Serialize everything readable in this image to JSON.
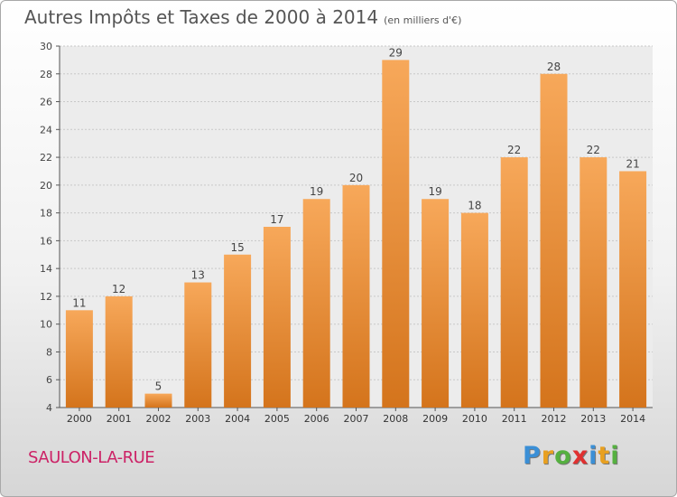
{
  "header": {
    "title": "Autres Impôts et Taxes de 2000 à 2014",
    "subtitle": "(en milliers d'€)"
  },
  "commune": "SAULON-LA-RUE",
  "logo": {
    "text": "Proxiti",
    "letters": [
      {
        "ch": "P",
        "color": "#3a8fd6"
      },
      {
        "ch": "r",
        "color": "#e8a020"
      },
      {
        "ch": "o",
        "color": "#55b040"
      },
      {
        "ch": "x",
        "color": "#e03030"
      },
      {
        "ch": "i",
        "color": "#3a8fd6"
      },
      {
        "ch": "t",
        "color": "#e8a020"
      },
      {
        "ch": "i",
        "color": "#55b040"
      }
    ]
  },
  "chart_data": {
    "type": "bar",
    "categories": [
      "2000",
      "2001",
      "2002",
      "2003",
      "2004",
      "2005",
      "2006",
      "2007",
      "2008",
      "2009",
      "2010",
      "2011",
      "2012",
      "2013",
      "2014"
    ],
    "values": [
      11,
      12,
      5,
      13,
      15,
      17,
      19,
      20,
      29,
      19,
      18,
      22,
      28,
      22,
      21
    ],
    "title": "Autres Impôts et Taxes de 2000 à 2014",
    "subtitle": "(en milliers d'€)",
    "ylim": [
      4,
      30
    ],
    "yticks": [
      4,
      6,
      8,
      10,
      12,
      14,
      16,
      18,
      20,
      22,
      24,
      26,
      28,
      30
    ],
    "grid": true,
    "bar_color_top": "#f7a85a",
    "bar_color_bottom": "#d4741c"
  }
}
